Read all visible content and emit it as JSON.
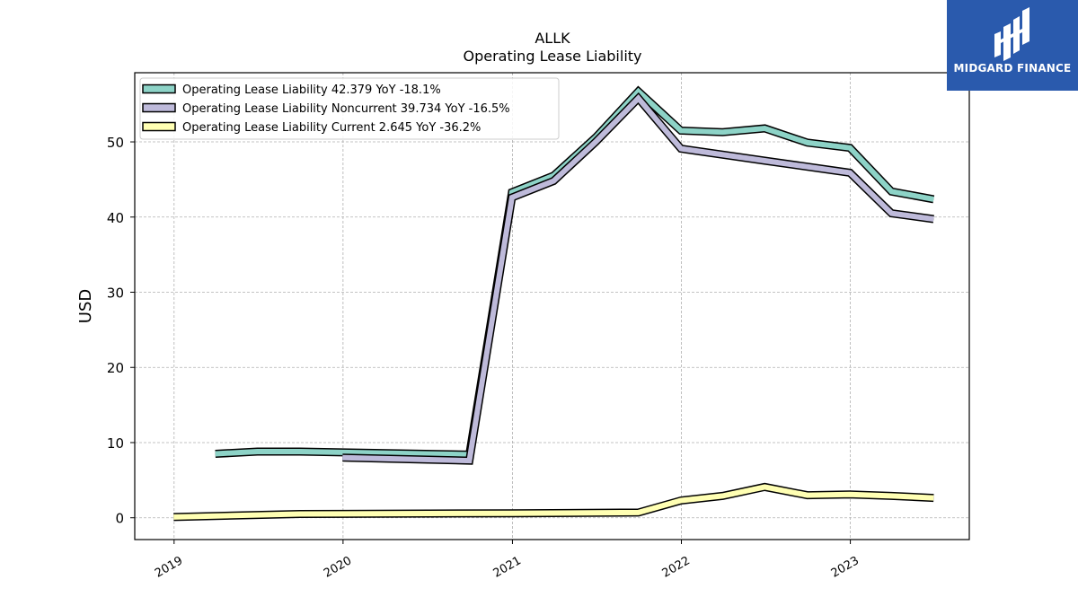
{
  "chart_data": {
    "type": "line",
    "title": "ALLK",
    "subtitle": "Operating Lease Liability",
    "ylabel": "USD",
    "xlabel": "",
    "x_ticks": [
      "2019",
      "2020",
      "2021",
      "2022",
      "2023"
    ],
    "y_ticks": [
      0,
      10,
      20,
      30,
      40,
      50
    ],
    "xlim": [
      "2018-10-08",
      "2023-09-15"
    ],
    "ylim": [
      -2.9,
      59.2
    ],
    "grid": true,
    "legend_position": "top-left",
    "series": [
      {
        "name": "Operating Lease Liability",
        "legend_label": "Operating Lease Liability  42.379 YoY -18.1%",
        "color": "#8dd3c7",
        "points": [
          [
            "2019-03-31",
            8.5
          ],
          [
            "2019-06-30",
            8.8
          ],
          [
            "2019-09-30",
            8.8
          ],
          [
            "2019-12-31",
            8.7
          ],
          [
            "2020-09-30",
            8.4
          ],
          [
            "2020-12-31",
            43.3
          ],
          [
            "2021-03-31",
            45.5
          ],
          [
            "2021-06-30",
            50.6
          ],
          [
            "2021-09-30",
            56.7
          ],
          [
            "2021-12-31",
            51.5
          ],
          [
            "2022-03-31",
            51.3
          ],
          [
            "2022-06-30",
            51.8
          ],
          [
            "2022-09-30",
            49.9
          ],
          [
            "2022-12-31",
            49.2
          ],
          [
            "2023-03-31",
            43.4
          ],
          [
            "2023-06-30",
            42.379
          ]
        ]
      },
      {
        "name": "Operating Lease Liability Noncurrent",
        "legend_label": "Operating Lease Liability Noncurrent  39.734 YoY -16.5%",
        "color": "#bebada",
        "points": [
          [
            "2019-12-31",
            8.0
          ],
          [
            "2020-09-30",
            7.6
          ],
          [
            "2020-12-31",
            42.6
          ],
          [
            "2021-03-31",
            44.8
          ],
          [
            "2021-06-30",
            50.0
          ],
          [
            "2021-09-30",
            55.8
          ],
          [
            "2021-12-31",
            49.1
          ],
          [
            "2022-06-30",
            47.5
          ],
          [
            "2022-12-31",
            45.9
          ],
          [
            "2023-03-31",
            40.5
          ],
          [
            "2023-06-30",
            39.734
          ]
        ]
      },
      {
        "name": "Operating Lease Liability Current",
        "legend_label": "Operating Lease Liability Current  2.645 YoY -36.2%",
        "color": "#ffffb3",
        "points": [
          [
            "2018-12-31",
            0.1
          ],
          [
            "2019-09-30",
            0.5
          ],
          [
            "2020-12-31",
            0.6
          ],
          [
            "2021-09-30",
            0.7
          ],
          [
            "2021-12-31",
            2.3
          ],
          [
            "2022-03-31",
            2.9
          ],
          [
            "2022-06-30",
            4.1
          ],
          [
            "2022-09-30",
            3.0
          ],
          [
            "2022-12-31",
            3.1
          ],
          [
            "2023-03-31",
            2.9
          ],
          [
            "2023-06-30",
            2.645
          ]
        ]
      }
    ]
  },
  "logo": {
    "text": "MIDGARD FINANCE",
    "color": "#2a5aad"
  }
}
